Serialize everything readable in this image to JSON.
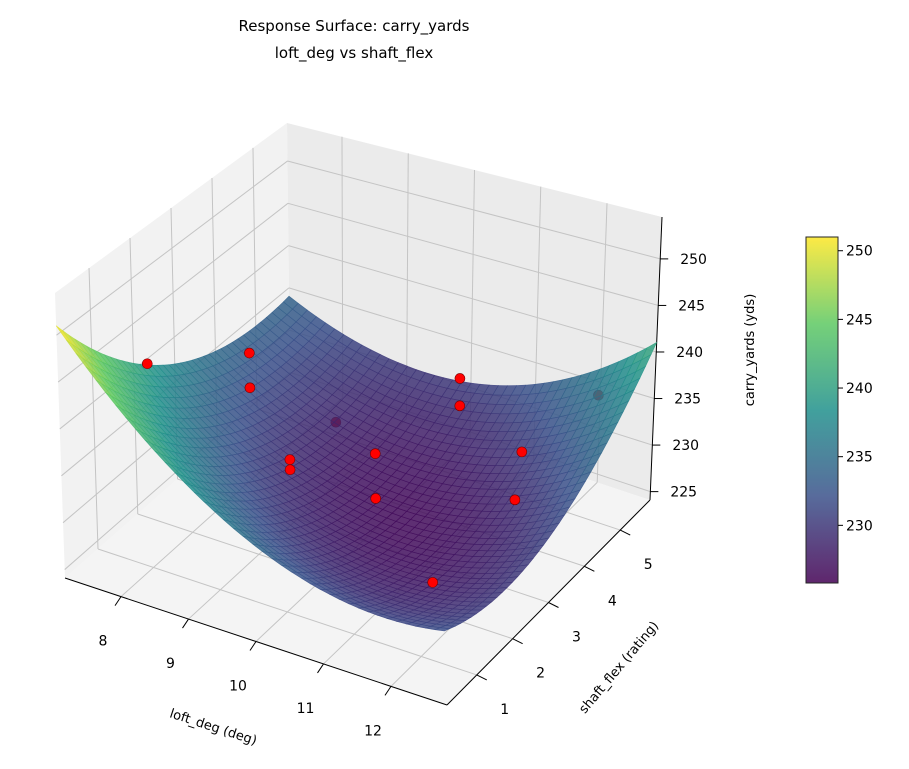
{
  "chart_data": {
    "type": "surface",
    "title": [
      "Response Surface: carry_yards",
      "loft_deg vs shaft_flex"
    ],
    "xlabel": "loft_deg (deg)",
    "ylabel": "shaft_flex (rating)",
    "zlabel": "carry_yards (yds)",
    "xlim": [
      7.17,
      12.83
    ],
    "ylim": [
      0.17,
      5.83
    ],
    "zlim": [
      224.1,
      254.5
    ],
    "xticks": [
      8,
      9,
      10,
      11,
      12
    ],
    "yticks": [
      1,
      2,
      3,
      4,
      5
    ],
    "zticks": [
      225,
      230,
      235,
      240,
      245,
      250
    ],
    "grid": true,
    "colormap": "viridis",
    "surface_fit": {
      "coding": {
        "loft_center": 10,
        "loft_step": 2,
        "flex_center": 3,
        "flex_step": 2
      },
      "intercept": 227,
      "loft": -2.12,
      "flex": -1.41,
      "loft_sq": 3.5,
      "flex_sq": 2.75,
      "loft_x_flex": 3.25
    },
    "points": [
      {
        "loft": 8,
        "flex": 1,
        "carry": 246.1
      },
      {
        "loft": 8,
        "flex": 3.5,
        "carry": 238.3
      },
      {
        "loft": 8,
        "flex": 3.5,
        "carry": 234.4
      },
      {
        "loft": 8.4,
        "flex": 5,
        "carry": 225.6
      },
      {
        "loft": 9.5,
        "flex": 2,
        "carry": 235.6
      },
      {
        "loft": 9.5,
        "flex": 2,
        "carry": 234.5
      },
      {
        "loft": 10.2,
        "flex": 3,
        "carry": 234.1
      },
      {
        "loft": 10.2,
        "flex": 3,
        "carry": 229.2
      },
      {
        "loft": 10.9,
        "flex": 4,
        "carry": 240.1
      },
      {
        "loft": 10.9,
        "flex": 4,
        "carry": 237.1
      },
      {
        "loft": 11.85,
        "flex": 4,
        "carry": 234.2
      },
      {
        "loft": 12.6,
        "flex": 2.5,
        "carry": 236.5
      },
      {
        "loft": 12.1,
        "flex": 5.6,
        "carry": 234.7
      },
      {
        "loft": 12.2,
        "flex": 1,
        "carry": 232.5
      }
    ],
    "point_color": "#ff0000",
    "colorbar": {
      "range": [
        225.8,
        251
      ],
      "ticks": [
        230,
        235,
        240,
        245,
        250
      ]
    }
  }
}
